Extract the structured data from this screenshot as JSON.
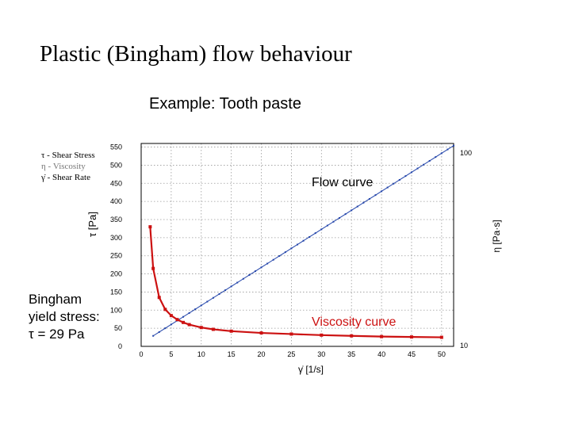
{
  "title": "Plastic (Bingham) flow behaviour",
  "subtitle": "Example: Tooth paste",
  "legend": {
    "line1": "τ - Shear Stress",
    "line2": "η - Viscosity",
    "line3": "γ̇ - Shear Rate"
  },
  "bingham": {
    "line1": "Bingham",
    "line2": "yield stress:",
    "line3": "τ = 29 Pa"
  },
  "chart_data": {
    "type": "line",
    "xlabel": "γ̇ [1/s]",
    "ylabel_left": "τ [Pa]",
    "ylabel_right": "η [Pa·s]",
    "xlim": [
      0,
      52
    ],
    "ylim": [
      0,
      560
    ],
    "x_ticks": [
      "0",
      "5",
      "10",
      "15",
      "20",
      "25",
      "30",
      "35",
      "40",
      "45",
      "50"
    ],
    "y_ticks": [
      "0",
      "50",
      "100",
      "150",
      "200",
      "250",
      "300",
      "350",
      "400",
      "450",
      "500",
      "550"
    ],
    "right_ticks": [
      "10",
      "100"
    ],
    "annotations": {
      "flow": "Flow curve",
      "viscosity": "Viscosity curve"
    },
    "grid": true,
    "series": [
      {
        "color": "#2244aa",
        "x": [
          2,
          52
        ],
        "y": [
          29,
          554
        ]
      },
      {
        "color": "#cc1111",
        "x": [
          1.5,
          2,
          3,
          4,
          5,
          6,
          7,
          8,
          10,
          12,
          15,
          20,
          25,
          30,
          35,
          40,
          45,
          50
        ],
        "y": [
          330,
          215,
          135,
          102,
          85,
          74,
          66,
          60,
          52,
          47,
          42,
          37,
          34,
          31,
          29,
          27,
          26,
          25
        ]
      }
    ]
  }
}
